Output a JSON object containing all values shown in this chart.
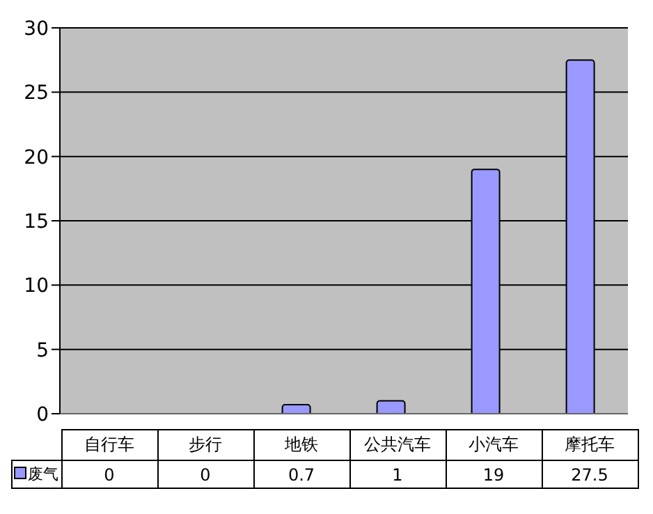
{
  "chart_data": {
    "type": "bar",
    "categories": [
      "自行车",
      "步行",
      "地铁",
      "公共汽车",
      "小汽车",
      "摩托车"
    ],
    "series": [
      {
        "name": "废气",
        "color": "#9999ff",
        "values": [
          0,
          0,
          0.7,
          1,
          19,
          27.5
        ]
      }
    ],
    "ylim": [
      0,
      30
    ],
    "yticks": [
      0,
      5,
      10,
      15,
      20,
      25,
      30
    ],
    "grid": "y",
    "legend": "bottom",
    "data_labels": true
  }
}
